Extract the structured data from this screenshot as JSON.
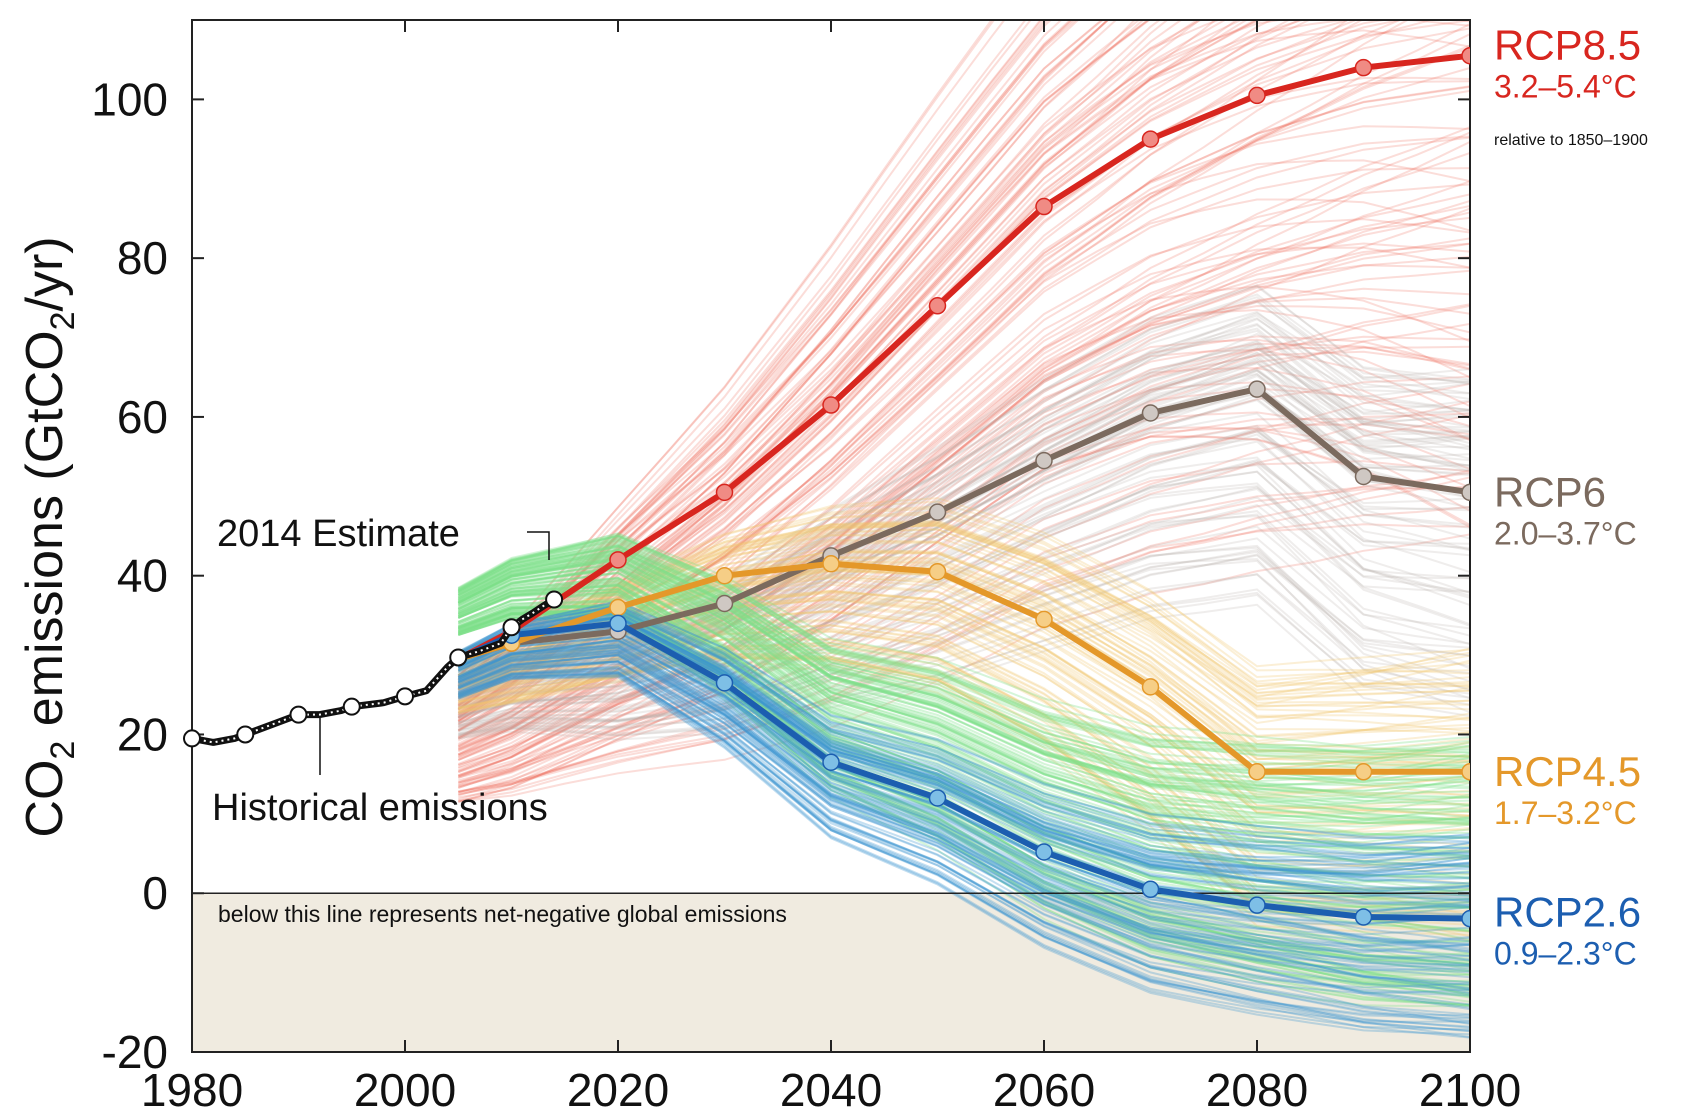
{
  "chart_data": {
    "type": "line",
    "ylabel": {
      "pre": "CO",
      "sub": "2",
      "mid": " emissions (GtCO",
      "sub2": "2",
      "post": "/yr)"
    },
    "xlim": [
      1980,
      2100
    ],
    "ylim": [
      -20,
      110
    ],
    "xticks": [
      1980,
      2000,
      2020,
      2040,
      2060,
      2080,
      2100
    ],
    "xtick_labels": [
      "1980",
      "2000",
      "2020",
      "2040",
      "2060",
      "2080",
      "2100"
    ],
    "yticks": [
      -20,
      0,
      20,
      40,
      60,
      80,
      100
    ],
    "ytick_labels": [
      "-20",
      "0",
      "20",
      "40",
      "60",
      "80",
      "100"
    ],
    "grid": false,
    "negative_region_note": "below this line represents net-negative global emissions",
    "negative_region_color": "#f0ebe0",
    "annotations": {
      "estimate_label": "2014 Estimate",
      "historical_label": "Historical emissions",
      "relative_note": "relative to 1850–1900"
    },
    "historical": {
      "color": "#111111",
      "x": [
        1980,
        1982,
        1984,
        1985,
        1988,
        1990,
        1992,
        1994,
        1995,
        1998,
        2000,
        2002,
        2004,
        2005,
        2007,
        2009,
        2010,
        2011,
        2012,
        2013,
        2014
      ],
      "y": [
        19.5,
        19.0,
        19.5,
        20.0,
        21.5,
        22.5,
        22.5,
        23.0,
        23.5,
        24.0,
        24.8,
        25.5,
        28.5,
        29.7,
        30.5,
        31.5,
        33.5,
        34.5,
        35.3,
        36.2,
        37.0
      ],
      "markers_x": [
        1980,
        1985,
        1990,
        1995,
        2000,
        2005,
        2010,
        2014
      ]
    },
    "series": [
      {
        "name": "RCP8.5",
        "range": "3.2–5.4°C",
        "color": "#d8261f",
        "marker_color": "#f08b84",
        "cloud_color": "#ec6453",
        "x": [
          2005,
          2010,
          2020,
          2030,
          2040,
          2050,
          2060,
          2070,
          2080,
          2090,
          2100
        ],
        "y": [
          29.5,
          33.0,
          42.0,
          50.5,
          61.5,
          74.0,
          86.5,
          95.0,
          100.5,
          104.0,
          105.5
        ]
      },
      {
        "name": "RCP6",
        "range": "2.0–3.7°C",
        "color": "#7b6a5e",
        "marker_color": "#cfc8c3",
        "cloud_color": "#b7aea8",
        "x": [
          2005,
          2010,
          2020,
          2030,
          2040,
          2050,
          2060,
          2070,
          2080,
          2090,
          2100
        ],
        "y": [
          29.5,
          31.5,
          33.0,
          36.5,
          42.5,
          48.0,
          54.5,
          60.5,
          63.5,
          52.5,
          50.5
        ]
      },
      {
        "name": "RCP4.5",
        "range": "1.7–3.2°C",
        "color": "#e4982a",
        "marker_color": "#f6ce86",
        "cloud_color": "#f2c56a",
        "x": [
          2005,
          2010,
          2020,
          2030,
          2040,
          2050,
          2060,
          2070,
          2080,
          2090,
          2100
        ],
        "y": [
          29.5,
          31.5,
          36.0,
          40.0,
          41.5,
          40.5,
          34.5,
          26.0,
          15.3,
          15.3,
          15.3
        ]
      },
      {
        "name": "RCP2.6",
        "range": "0.9–2.3°C",
        "color": "#1c5eb0",
        "marker_color": "#7ebfe6",
        "cloud_color": "#3b96d2",
        "x": [
          2005,
          2010,
          2020,
          2030,
          2040,
          2050,
          2060,
          2070,
          2080,
          2090,
          2100
        ],
        "y": [
          29.5,
          32.5,
          34.0,
          26.5,
          16.5,
          12.0,
          5.2,
          0.5,
          -1.5,
          -3.0,
          -3.2
        ]
      }
    ],
    "green_cloud_color": "#7de08a"
  }
}
